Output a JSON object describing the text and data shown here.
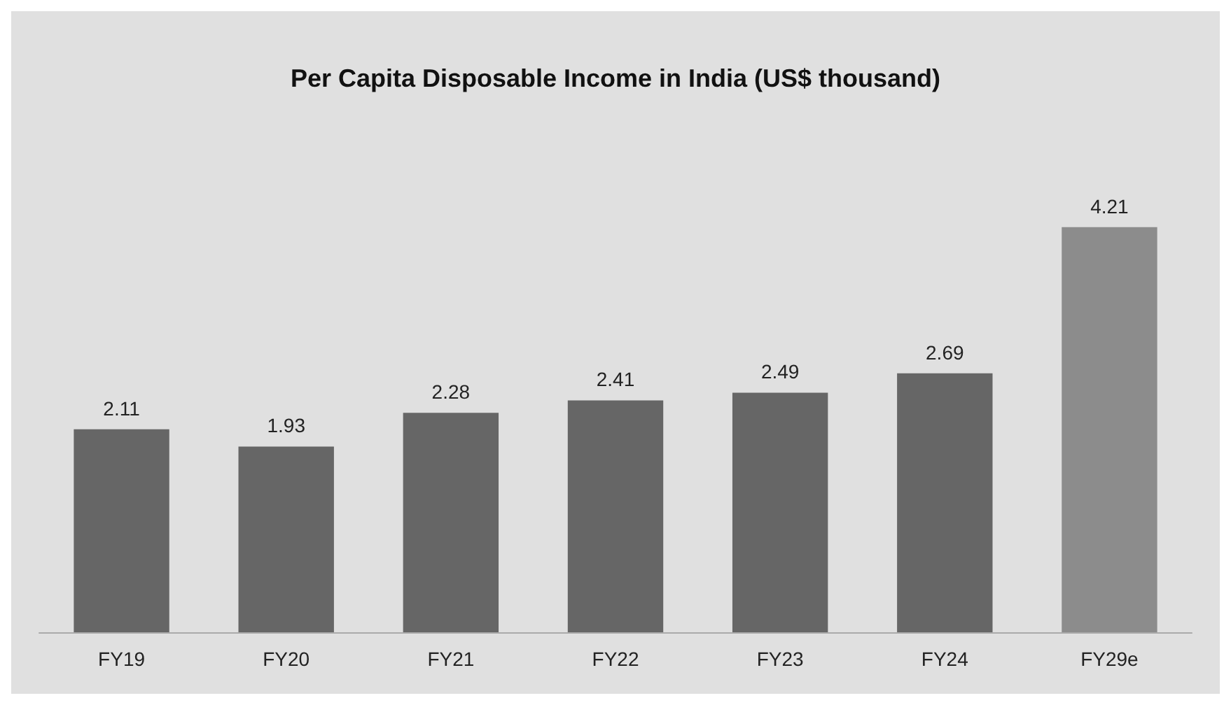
{
  "chart_data": {
    "type": "bar",
    "title": "Per Capita Disposable Income in India (US$ thousand)",
    "categories": [
      "FY19",
      "FY20",
      "FY21",
      "FY22",
      "FY23",
      "FY24",
      "FY29e"
    ],
    "values": [
      2.11,
      1.93,
      2.28,
      2.41,
      2.49,
      2.69,
      4.21
    ],
    "colors": [
      "#666666",
      "#666666",
      "#666666",
      "#666666",
      "#666666",
      "#666666",
      "#8c8c8c"
    ],
    "data_labels": true
  }
}
